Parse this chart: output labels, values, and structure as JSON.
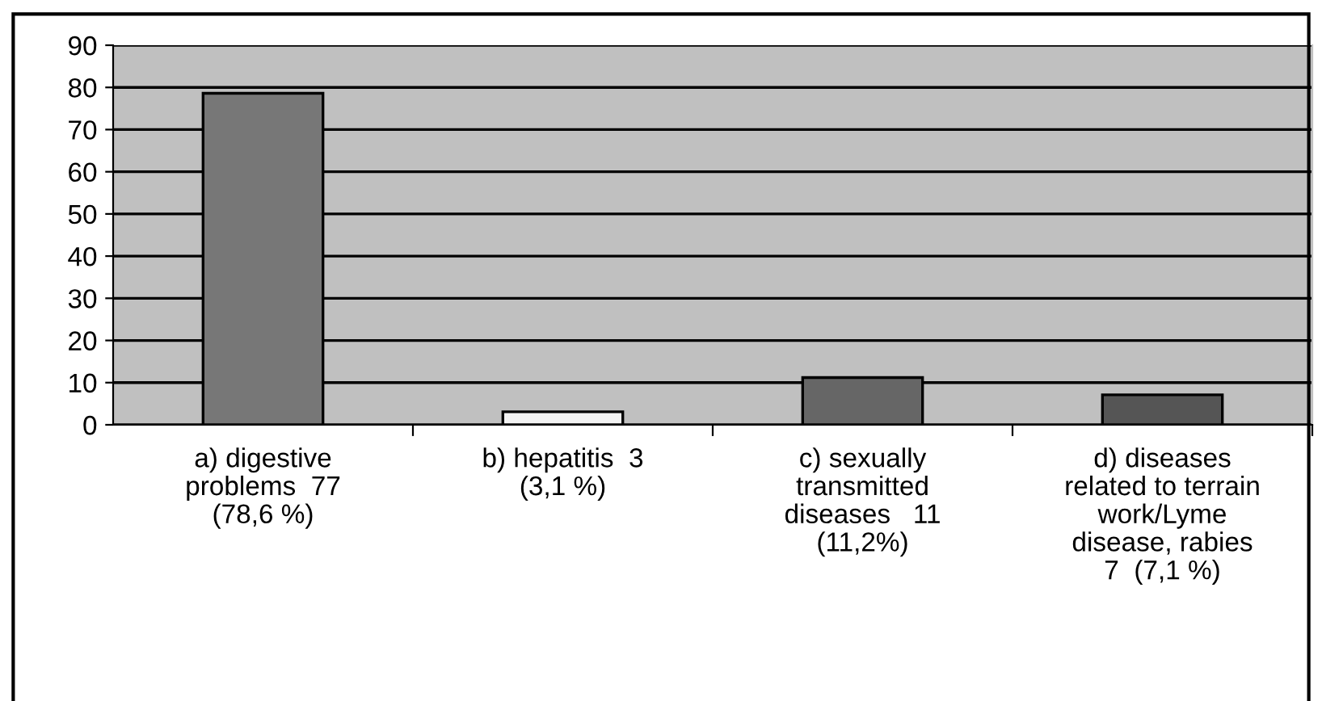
{
  "chart_data": {
    "type": "bar",
    "categories": [
      "a) digestive\nproblems  77\n(78,6 %)",
      "b) hepatitis  3\n(3,1 %)",
      "c) sexually\ntransmitted\ndiseases   11\n(11,2%)",
      "d) diseases\nrelated to terrain\nwork/Lyme\ndisease, rabies\n7  (7,1 %)"
    ],
    "values": [
      78.6,
      3.1,
      11.2,
      7.1
    ],
    "colors": [
      "#777777",
      "#f2f2f2",
      "#666666",
      "#555555"
    ],
    "ylim": [
      0,
      90
    ],
    "yticks": [
      0,
      10,
      20,
      30,
      40,
      50,
      60,
      70,
      80,
      90
    ],
    "grid": "y"
  }
}
